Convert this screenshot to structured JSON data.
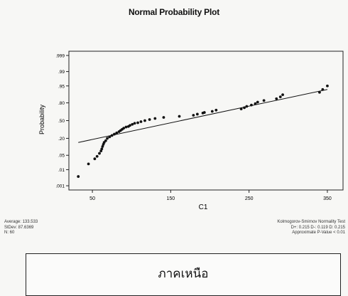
{
  "chart_data": {
    "type": "scatter",
    "title": "Normal Probability Plot",
    "xlabel": "C1",
    "ylabel": "Probability",
    "xlim": [
      20,
      370
    ],
    "xticks": [
      50,
      150,
      250,
      350
    ],
    "yticks": [
      ".001",
      ".01",
      ".05",
      ".20",
      ".50",
      ".80",
      ".95",
      ".99",
      ".999"
    ],
    "series": [
      {
        "values_xy": [
          [
            32,
            0.004
          ],
          [
            45,
            0.02
          ],
          [
            53,
            0.035
          ],
          [
            56,
            0.045
          ],
          [
            59,
            0.06
          ],
          [
            61,
            0.075
          ],
          [
            62,
            0.09
          ],
          [
            63,
            0.11
          ],
          [
            64,
            0.13
          ],
          [
            65,
            0.15
          ],
          [
            67,
            0.17
          ],
          [
            69,
            0.2
          ],
          [
            72,
            0.22
          ],
          [
            75,
            0.24
          ],
          [
            78,
            0.26
          ],
          [
            81,
            0.28
          ],
          [
            84,
            0.3
          ],
          [
            86,
            0.32
          ],
          [
            88,
            0.34
          ],
          [
            90,
            0.36
          ],
          [
            93,
            0.38
          ],
          [
            96,
            0.39
          ],
          [
            98,
            0.41
          ],
          [
            101,
            0.43
          ],
          [
            104,
            0.45
          ],
          [
            108,
            0.46
          ],
          [
            112,
            0.48
          ],
          [
            117,
            0.5
          ],
          [
            123,
            0.52
          ],
          [
            130,
            0.54
          ],
          [
            141,
            0.56
          ],
          [
            161,
            0.58
          ],
          [
            179,
            0.6
          ],
          [
            184,
            0.62
          ],
          [
            191,
            0.64
          ],
          [
            193,
            0.65
          ],
          [
            203,
            0.67
          ],
          [
            208,
            0.69
          ],
          [
            240,
            0.71
          ],
          [
            244,
            0.73
          ],
          [
            247,
            0.75
          ],
          [
            253,
            0.77
          ],
          [
            258,
            0.79
          ],
          [
            261,
            0.81
          ],
          [
            269,
            0.83
          ],
          [
            285,
            0.85
          ],
          [
            290,
            0.87
          ],
          [
            293,
            0.89
          ],
          [
            340,
            0.91
          ],
          [
            344,
            0.93
          ],
          [
            350,
            0.95
          ]
        ]
      }
    ],
    "fit_line": [
      [
        32,
        0.15
      ],
      [
        350,
        0.93
      ]
    ]
  },
  "stats": {
    "average": "Average: 133.533",
    "stdev": "StDev: 87.6369",
    "n": "N: 60",
    "test_name": "Kolmogorov-Smirnov Normality Test",
    "test_values": "D+: 0.215 D-: 0.119 D: 0.215",
    "p_value": "Approximate P-Value < 0.01"
  },
  "region_label": "ภาคเหนือ"
}
